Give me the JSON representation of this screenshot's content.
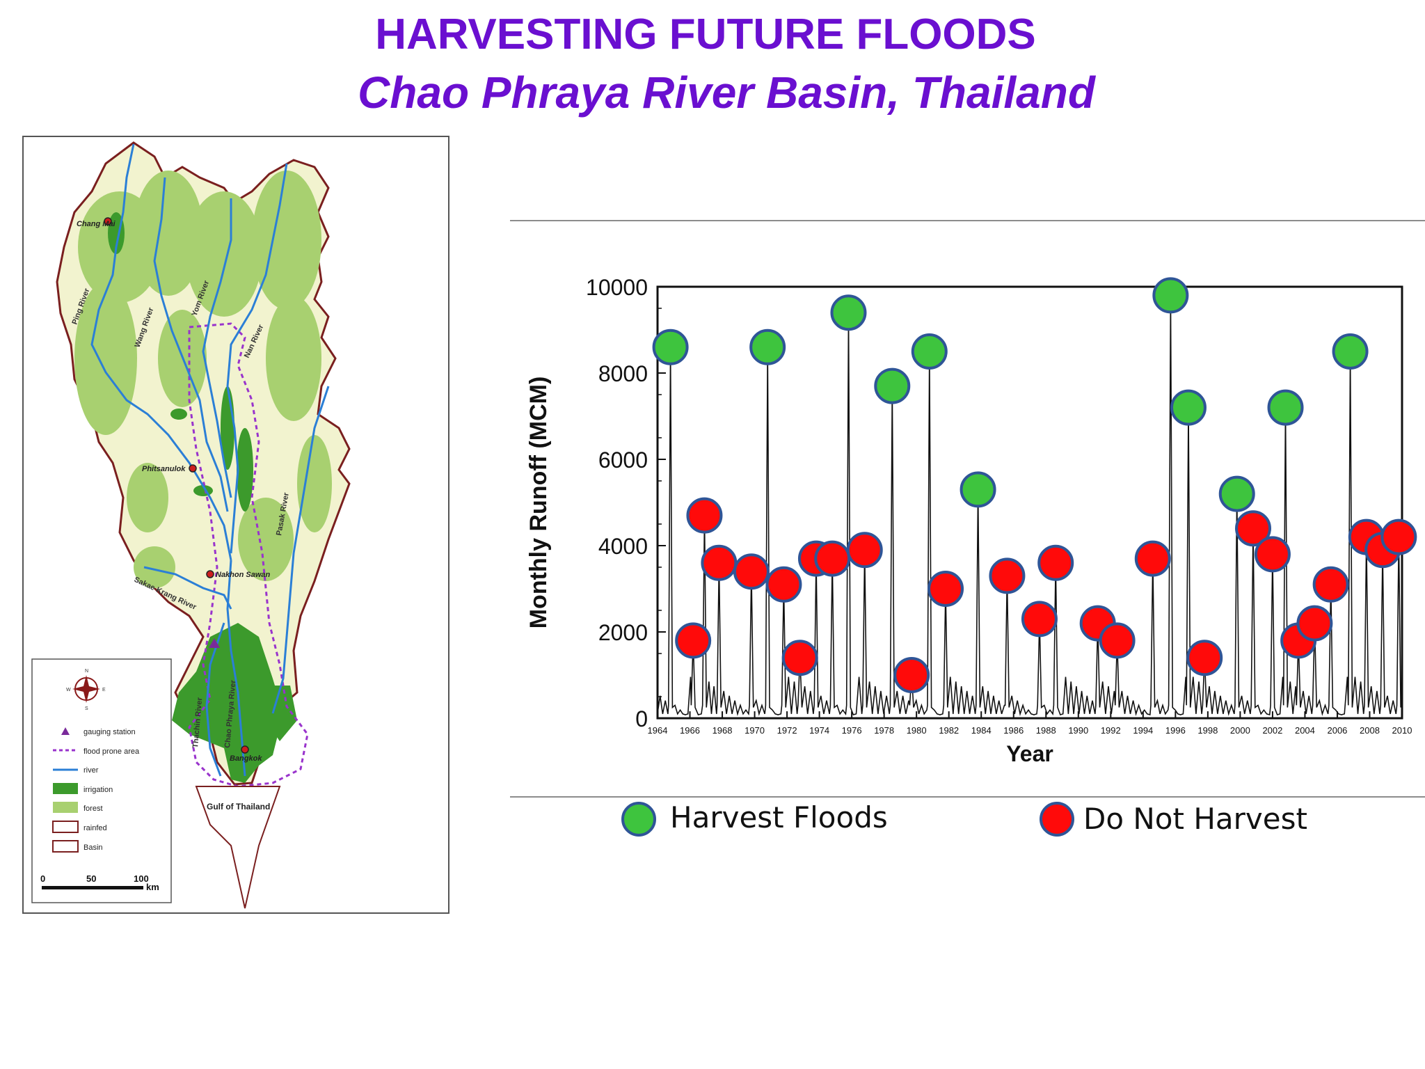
{
  "title": "HARVESTING FUTURE FLOODS",
  "subtitle": "Chao Phraya River Basin, Thailand",
  "colors": {
    "title": "#6a0fd0",
    "harvest": "#3ec43e",
    "no_harvest": "#ff0a0a",
    "marker_border": "#2f5597",
    "irrigation": "#3c9a2c",
    "forest": "#a8d070",
    "basin_fill": "#f2f3cf",
    "river": "#2b7fd6",
    "flood_zone": "#9933cc",
    "gauge": "#7a2a9a",
    "basin_border": "#7a1f1f"
  },
  "map": {
    "rivers": [
      "Ping River",
      "Wang River",
      "Yom River",
      "Nan River",
      "Pasak River",
      "Sakae Krang River",
      "Thachin River",
      "Chao Phraya River"
    ],
    "cities": [
      "Chang Mai",
      "Phitsanulok",
      "Nakhon Sawan",
      "Bangkok"
    ],
    "sea_label": "Gulf of Thailand",
    "compass": [
      "N",
      "E",
      "S",
      "W"
    ],
    "legend": [
      "gauging station",
      "flood prone area",
      "river",
      "irrigation",
      "forest",
      "rainfed",
      "Basin"
    ],
    "scale": {
      "labels": [
        "0",
        "50",
        "100"
      ],
      "unit": "km"
    }
  },
  "legend": {
    "harvest_label": "Harvest Floods",
    "no_harvest_label": "Do Not Harvest"
  },
  "chart_data": {
    "type": "line",
    "xlabel": "Year",
    "ylabel": "Monthly Runoff (MCM)",
    "xlim": [
      1964,
      2010
    ],
    "ylim": [
      0,
      10000
    ],
    "x_ticks": [
      1964,
      1966,
      1968,
      1970,
      1972,
      1974,
      1976,
      1978,
      1980,
      1982,
      1984,
      1986,
      1988,
      1990,
      1992,
      1994,
      1996,
      1998,
      2000,
      2002,
      2004,
      2006,
      2008,
      2010
    ],
    "y_ticks": [
      0,
      2000,
      4000,
      6000,
      8000,
      10000
    ],
    "annual_peaks": [
      {
        "year": 1964.8,
        "value": 8600,
        "class": "harvest"
      },
      {
        "year": 1966.2,
        "value": 1800,
        "class": "no_harvest"
      },
      {
        "year": 1966.9,
        "value": 4700,
        "class": "no_harvest"
      },
      {
        "year": 1967.8,
        "value": 3600,
        "class": "no_harvest"
      },
      {
        "year": 1969.8,
        "value": 3400,
        "class": "no_harvest"
      },
      {
        "year": 1970.8,
        "value": 8600,
        "class": "harvest"
      },
      {
        "year": 1971.8,
        "value": 3100,
        "class": "no_harvest"
      },
      {
        "year": 1972.8,
        "value": 1400,
        "class": "no_harvest"
      },
      {
        "year": 1973.8,
        "value": 3700,
        "class": "no_harvest"
      },
      {
        "year": 1974.8,
        "value": 3700,
        "class": "no_harvest"
      },
      {
        "year": 1975.8,
        "value": 9400,
        "class": "harvest"
      },
      {
        "year": 1976.8,
        "value": 3900,
        "class": "no_harvest"
      },
      {
        "year": 1978.5,
        "value": 7700,
        "class": "harvest"
      },
      {
        "year": 1979.7,
        "value": 1000,
        "class": "no_harvest"
      },
      {
        "year": 1980.8,
        "value": 8500,
        "class": "harvest"
      },
      {
        "year": 1981.8,
        "value": 3000,
        "class": "no_harvest"
      },
      {
        "year": 1983.8,
        "value": 5300,
        "class": "harvest"
      },
      {
        "year": 1985.6,
        "value": 3300,
        "class": "no_harvest"
      },
      {
        "year": 1987.6,
        "value": 2300,
        "class": "no_harvest"
      },
      {
        "year": 1988.6,
        "value": 3600,
        "class": "no_harvest"
      },
      {
        "year": 1991.2,
        "value": 2200,
        "class": "no_harvest"
      },
      {
        "year": 1992.4,
        "value": 1800,
        "class": "no_harvest"
      },
      {
        "year": 1994.6,
        "value": 3700,
        "class": "no_harvest"
      },
      {
        "year": 1995.7,
        "value": 9800,
        "class": "harvest"
      },
      {
        "year": 1996.8,
        "value": 7200,
        "class": "harvest"
      },
      {
        "year": 1997.8,
        "value": 1400,
        "class": "no_harvest"
      },
      {
        "year": 1999.8,
        "value": 5200,
        "class": "harvest"
      },
      {
        "year": 2000.8,
        "value": 4400,
        "class": "no_harvest"
      },
      {
        "year": 2002.0,
        "value": 3800,
        "class": "no_harvest"
      },
      {
        "year": 2002.8,
        "value": 7200,
        "class": "harvest"
      },
      {
        "year": 2003.6,
        "value": 1800,
        "class": "no_harvest"
      },
      {
        "year": 2004.6,
        "value": 2200,
        "class": "no_harvest"
      },
      {
        "year": 2005.6,
        "value": 3100,
        "class": "no_harvest"
      },
      {
        "year": 2006.8,
        "value": 8500,
        "class": "harvest"
      },
      {
        "year": 2007.8,
        "value": 4200,
        "class": "no_harvest"
      },
      {
        "year": 2008.8,
        "value": 3900,
        "class": "no_harvest"
      },
      {
        "year": 2009.8,
        "value": 4200,
        "class": "no_harvest"
      }
    ]
  }
}
